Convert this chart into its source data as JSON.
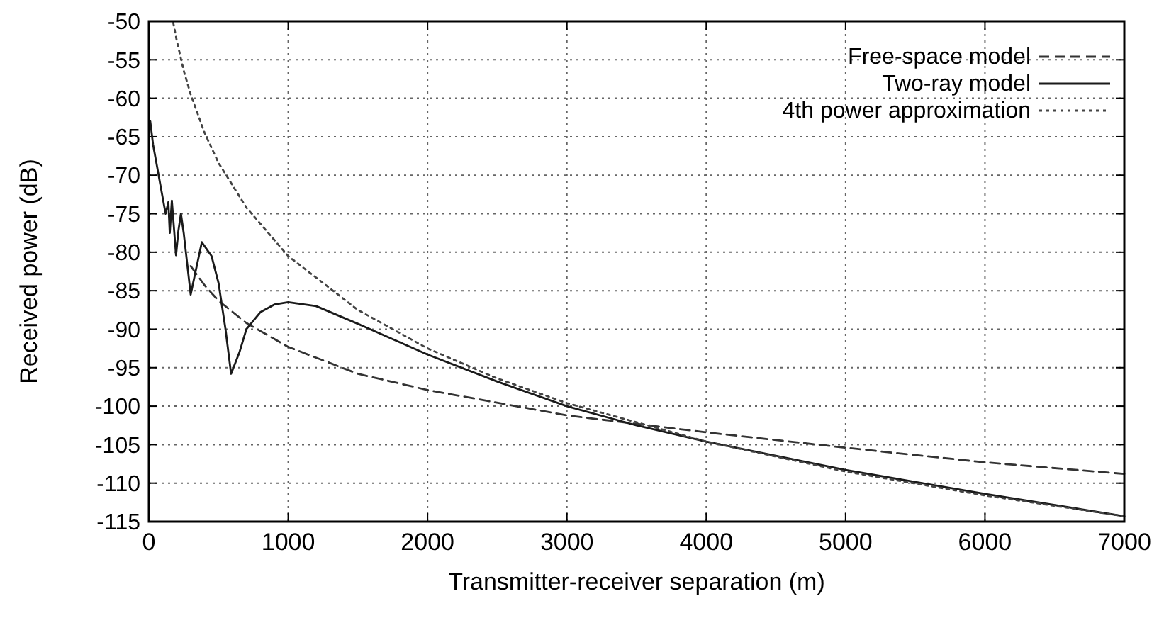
{
  "chart_data": {
    "type": "line",
    "xlabel": "Transmitter-receiver separation (m)",
    "ylabel": "Received power (dB)",
    "xlim": [
      0,
      7000
    ],
    "xticks": [
      0,
      1000,
      2000,
      3000,
      4000,
      5000,
      6000,
      7000
    ],
    "ylim": [
      -115,
      -50
    ],
    "yticks": [
      -115,
      -110,
      -105,
      -100,
      -95,
      -90,
      -85,
      -80,
      -75,
      -70,
      -65,
      -60,
      -55,
      -50
    ],
    "grid": true,
    "legend": "top right",
    "marker": "none",
    "series": [
      {
        "name": "Free-space model",
        "color": "#333333",
        "line_style": "dashed",
        "x": [
          300,
          400,
          500,
          700,
          1000,
          1500,
          2000,
          3000,
          4000,
          5000,
          6000,
          7000
        ],
        "values": [
          -81.8,
          -84.3,
          -86.3,
          -89.2,
          -92.3,
          -95.8,
          -97.9,
          -101.2,
          -103.4,
          -105.4,
          -107.3,
          -108.8
        ]
      },
      {
        "name": "Two-ray model",
        "color": "#1a1a1a",
        "line_style": "solid",
        "x": [
          10,
          30,
          60,
          90,
          120,
          140,
          150,
          165,
          195,
          212,
          230,
          250,
          300,
          380,
          450,
          500,
          550,
          590,
          650,
          700,
          800,
          900,
          1000,
          1200,
          1500,
          2000,
          2500,
          3000,
          3500,
          4000,
          5000,
          6000,
          7000
        ],
        "values": [
          -63,
          -66,
          -69,
          -72,
          -75,
          -73.5,
          -77.5,
          -73.3,
          -80.4,
          -77.2,
          -75,
          -77.5,
          -85.5,
          -78.7,
          -80.5,
          -84,
          -90,
          -95.8,
          -93,
          -90,
          -87.8,
          -86.8,
          -86.5,
          -87,
          -89.3,
          -93.3,
          -96.8,
          -100,
          -102.5,
          -104.6,
          -108.3,
          -111.4,
          -114.3
        ]
      },
      {
        "name": "4th power approximation",
        "color": "#444444",
        "line_style": "dotted",
        "x": [
          175,
          200,
          250,
          300,
          400,
          500,
          700,
          1000,
          1500,
          2000,
          2500,
          3000,
          4000,
          5000,
          6000,
          7000
        ],
        "values": [
          -50.2,
          -52.5,
          -56.4,
          -59.5,
          -64.5,
          -68.4,
          -74.2,
          -80.5,
          -87.5,
          -92.5,
          -96.4,
          -99.6,
          -104.6,
          -108.5,
          -111.6,
          -114.3
        ]
      }
    ]
  }
}
